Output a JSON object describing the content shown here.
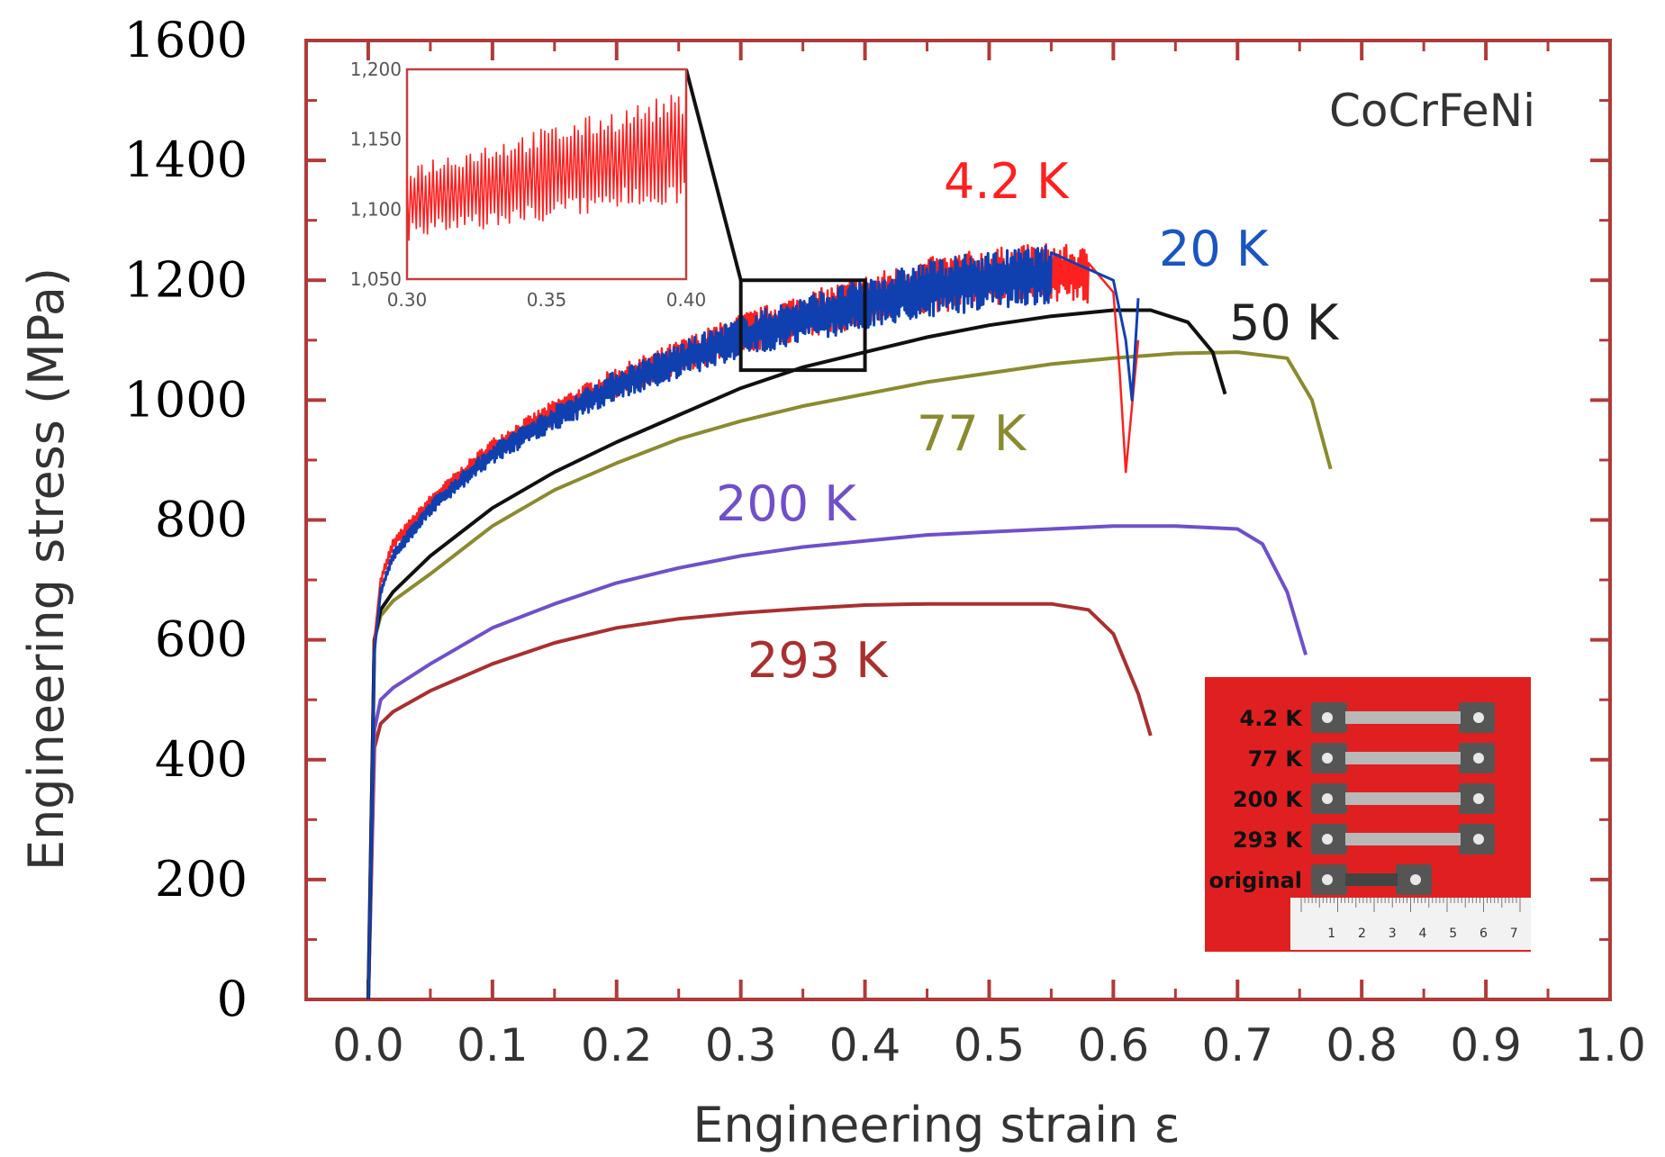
{
  "chart_data": {
    "type": "line",
    "title": "",
    "material_label": "CoCrFeNi",
    "xlabel": "Engineering strain ε",
    "ylabel": "Engineering stress (MPa)",
    "xlim": [
      -0.05,
      1.0
    ],
    "ylim": [
      0,
      1600
    ],
    "x_ticks": [
      "0.0",
      "0.1",
      "0.2",
      "0.3",
      "0.4",
      "0.5",
      "0.6",
      "0.7",
      "0.8",
      "0.9",
      "1.0"
    ],
    "y_ticks": [
      "0",
      "200",
      "400",
      "600",
      "800",
      "1000",
      "1200",
      "1400",
      "1600"
    ],
    "grid": false,
    "legend": "none (inline labels)",
    "colors": {
      "frame": "#b03a3a",
      "s4": "#ff2020",
      "s20": "#1040b0",
      "s50": "#111111",
      "s77": "#8a8a30",
      "s200": "#7050c8",
      "s293": "#a83030"
    },
    "series": [
      {
        "name": "4.2 K",
        "color_key": "s4",
        "noisy": true,
        "x": [
          0,
          0.005,
          0.01,
          0.02,
          0.05,
          0.1,
          0.15,
          0.2,
          0.25,
          0.3,
          0.35,
          0.4,
          0.45,
          0.5,
          0.55,
          0.58,
          0.6,
          0.605,
          0.61,
          0.62
        ],
        "y": [
          0,
          600,
          700,
          760,
          830,
          920,
          980,
          1030,
          1070,
          1110,
          1140,
          1165,
          1190,
          1205,
          1215,
          1205,
          1180,
          1050,
          880,
          1100
        ]
      },
      {
        "name": "20 K",
        "color_key": "s20",
        "noisy": true,
        "x": [
          0,
          0.005,
          0.01,
          0.02,
          0.05,
          0.1,
          0.15,
          0.2,
          0.25,
          0.3,
          0.35,
          0.4,
          0.45,
          0.5,
          0.55,
          0.6,
          0.61,
          0.615,
          0.62
        ],
        "y": [
          0,
          580,
          680,
          740,
          820,
          910,
          970,
          1025,
          1065,
          1105,
          1135,
          1160,
          1185,
          1200,
          1210,
          1200,
          1100,
          1000,
          1170
        ]
      },
      {
        "name": "50 K",
        "color_key": "s50",
        "noisy": false,
        "x": [
          0,
          0.005,
          0.01,
          0.02,
          0.05,
          0.1,
          0.15,
          0.2,
          0.25,
          0.3,
          0.35,
          0.4,
          0.45,
          0.5,
          0.55,
          0.6,
          0.63,
          0.66,
          0.68,
          0.69
        ],
        "y": [
          0,
          600,
          650,
          680,
          740,
          820,
          880,
          930,
          975,
          1020,
          1055,
          1080,
          1105,
          1125,
          1140,
          1150,
          1150,
          1130,
          1080,
          1010
        ]
      },
      {
        "name": "77 K",
        "color_key": "s77",
        "noisy": false,
        "x": [
          0,
          0.005,
          0.01,
          0.02,
          0.05,
          0.1,
          0.15,
          0.2,
          0.25,
          0.3,
          0.35,
          0.4,
          0.45,
          0.5,
          0.55,
          0.6,
          0.65,
          0.7,
          0.74,
          0.76,
          0.775
        ],
        "y": [
          0,
          600,
          640,
          665,
          710,
          790,
          850,
          895,
          935,
          965,
          990,
          1010,
          1030,
          1045,
          1060,
          1070,
          1078,
          1080,
          1070,
          1000,
          885
        ]
      },
      {
        "name": "200 K",
        "color_key": "s200",
        "noisy": false,
        "x": [
          0,
          0.005,
          0.01,
          0.02,
          0.05,
          0.1,
          0.15,
          0.2,
          0.25,
          0.3,
          0.35,
          0.4,
          0.45,
          0.5,
          0.55,
          0.6,
          0.65,
          0.7,
          0.72,
          0.74,
          0.755
        ],
        "y": [
          0,
          450,
          500,
          520,
          560,
          620,
          660,
          695,
          720,
          740,
          755,
          765,
          775,
          780,
          785,
          790,
          790,
          785,
          760,
          680,
          575
        ]
      },
      {
        "name": "293 K",
        "color_key": "s293",
        "noisy": false,
        "x": [
          0,
          0.005,
          0.01,
          0.02,
          0.05,
          0.1,
          0.15,
          0.2,
          0.25,
          0.3,
          0.35,
          0.4,
          0.45,
          0.5,
          0.55,
          0.58,
          0.6,
          0.62,
          0.63
        ],
        "y": [
          0,
          420,
          460,
          480,
          515,
          560,
          595,
          620,
          635,
          645,
          652,
          658,
          660,
          660,
          660,
          650,
          610,
          510,
          440
        ]
      }
    ],
    "inset": {
      "x_ticks": [
        "0.30",
        "0.35",
        "0.40"
      ],
      "y_ticks": [
        "1,050",
        "1,100",
        "1,150",
        "1,200"
      ],
      "xlim": [
        0.3,
        0.4
      ],
      "ylim": [
        1050,
        1200
      ],
      "zoom_box": {
        "x": [
          0.3,
          0.4
        ],
        "y": [
          1050,
          1200
        ]
      }
    },
    "photo": {
      "labels": [
        "4.2 K",
        "77 K",
        "200 K",
        "293 K",
        "original"
      ],
      "ruler_numbers": [
        "1",
        "2",
        "3",
        "4",
        "5",
        "6",
        "7"
      ]
    }
  }
}
